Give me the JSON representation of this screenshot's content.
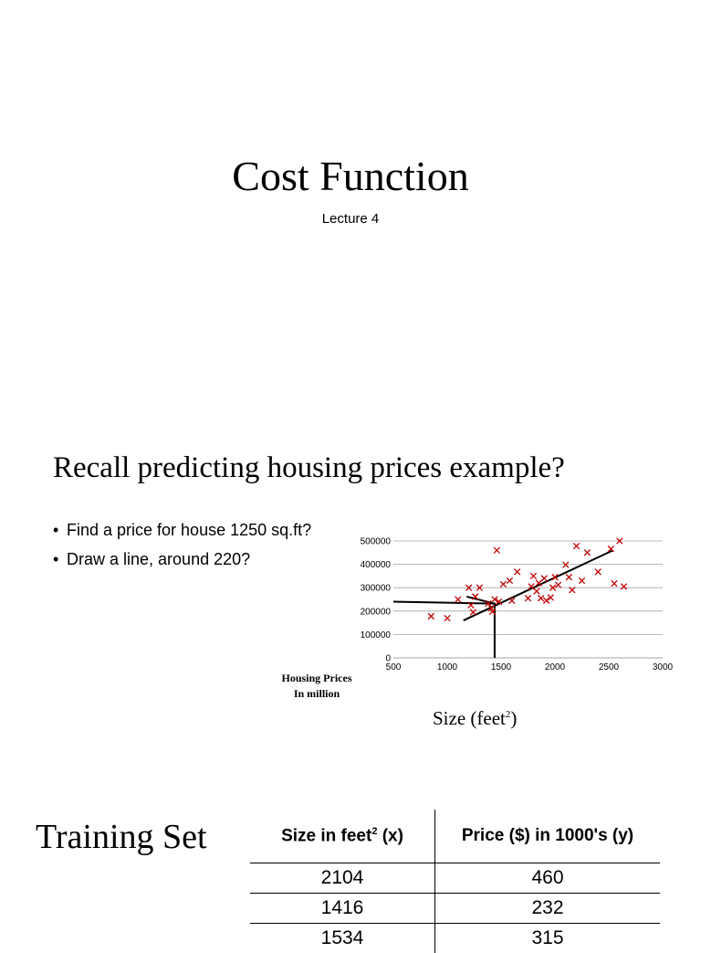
{
  "slide1": {
    "title": "Cost Function",
    "subtitle": "Lecture 4"
  },
  "slide2": {
    "title": "Recall predicting housing prices example?",
    "bullets": [
      "Find a price for house 1250 sq.ft?",
      "Draw a line, around 220?"
    ],
    "ylabel_line1": "Housing Prices",
    "ylabel_line2": "In million",
    "xlabel_main": "Size (feet",
    "xlabel_sup": "2",
    "xlabel_end": ")"
  },
  "chart_data": {
    "type": "scatter",
    "title": "",
    "xlabel": "Size (feet²)",
    "ylabel": "Housing Prices In million",
    "xlim": [
      500,
      3000
    ],
    "ylim": [
      0,
      500000
    ],
    "x_ticks": [
      "500",
      "1000",
      "1500",
      "2000",
      "2500",
      "3000"
    ],
    "y_ticks": [
      "0",
      "100000",
      "200000",
      "300000",
      "400000",
      "500000"
    ],
    "grid": true,
    "marker": "x",
    "marker_color": "#c00000",
    "series": [
      {
        "points": [
          [
            850,
            178000
          ],
          [
            1000,
            170000
          ],
          [
            1100,
            250000
          ],
          [
            1200,
            300000
          ],
          [
            1220,
            225000
          ],
          [
            1240,
            195000
          ],
          [
            1260,
            262000
          ],
          [
            1300,
            300000
          ],
          [
            1380,
            232000
          ],
          [
            1410,
            212000
          ],
          [
            1420,
            198000
          ],
          [
            1440,
            250000
          ],
          [
            1460,
            460000
          ],
          [
            1480,
            240000
          ],
          [
            1520,
            315000
          ],
          [
            1580,
            330000
          ],
          [
            1600,
            245000
          ],
          [
            1650,
            368000
          ],
          [
            1750,
            255000
          ],
          [
            1780,
            305000
          ],
          [
            1800,
            350000
          ],
          [
            1830,
            285000
          ],
          [
            1850,
            320000
          ],
          [
            1870,
            255000
          ],
          [
            1900,
            340000
          ],
          [
            1920,
            245000
          ],
          [
            1960,
            258000
          ],
          [
            1980,
            300000
          ],
          [
            2000,
            345000
          ],
          [
            2030,
            312000
          ],
          [
            2100,
            398000
          ],
          [
            2130,
            345000
          ],
          [
            2160,
            290000
          ],
          [
            2200,
            478000
          ],
          [
            2250,
            330000
          ],
          [
            2300,
            450000
          ],
          [
            2400,
            368000
          ],
          [
            2520,
            466000
          ],
          [
            2550,
            318000
          ],
          [
            2600,
            500000
          ],
          [
            2640,
            305000
          ]
        ]
      }
    ],
    "fit_line": [
      [
        1150,
        160000
      ],
      [
        2540,
        460000
      ]
    ],
    "annotation_lines": [
      [
        [
          500,
          240000
        ],
        [
          1440,
          232000
        ],
        [
          1440,
          0
        ]
      ],
      [
        [
          1440,
          232000
        ],
        [
          1180,
          262000
        ]
      ]
    ]
  },
  "slide3": {
    "title": "Training Set",
    "table": {
      "header_size": "Size in feet",
      "header_size_sup": "2",
      "header_size_end": " (x)",
      "header_price": "Price ($) in 1000's (y)",
      "rows": [
        [
          "2104",
          "460"
        ],
        [
          "1416",
          "232"
        ],
        [
          "1534",
          "315"
        ]
      ]
    }
  }
}
